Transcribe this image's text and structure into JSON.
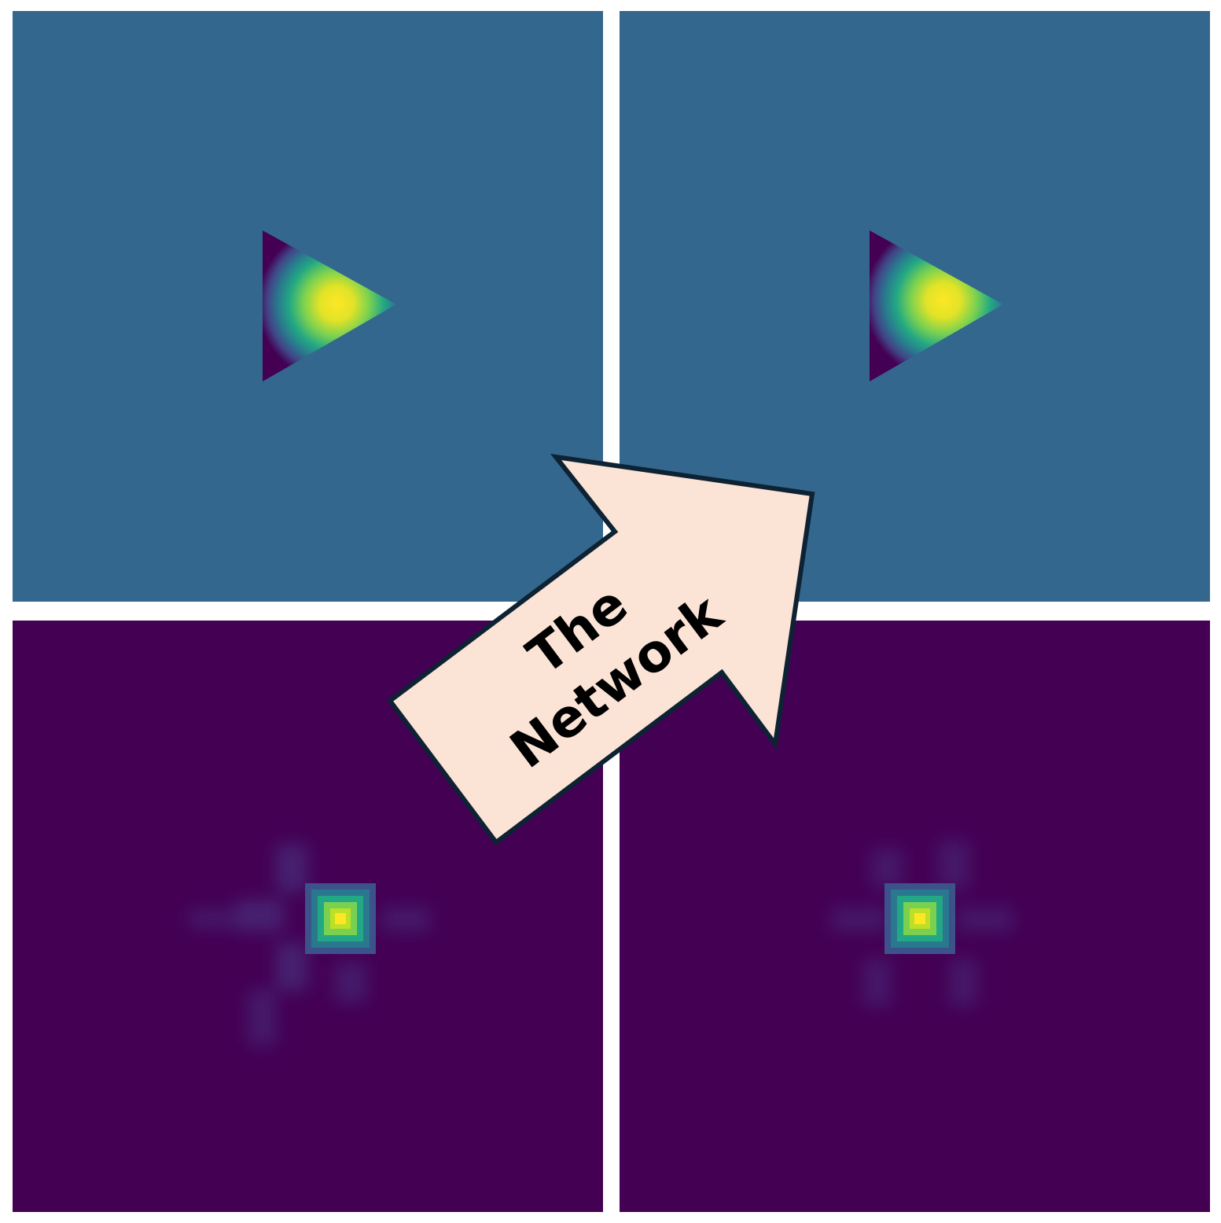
{
  "colors": {
    "top_background": "#33678d",
    "bottom_background": "#440154",
    "arrow_fill": "#fbe3d6",
    "arrow_stroke": "#0d2233",
    "viridis_low": "#440154",
    "viridis_mid": "#21918c",
    "viridis_high": "#fde725"
  },
  "panels": [
    {
      "name": "top-left",
      "kind": "input-field-triangle"
    },
    {
      "name": "top-right",
      "kind": "input-field-triangle"
    },
    {
      "name": "bottom-left",
      "kind": "diffraction-pattern"
    },
    {
      "name": "bottom-right",
      "kind": "diffraction-pattern"
    }
  ],
  "arrow": {
    "line1": "The",
    "line2": "Network"
  }
}
